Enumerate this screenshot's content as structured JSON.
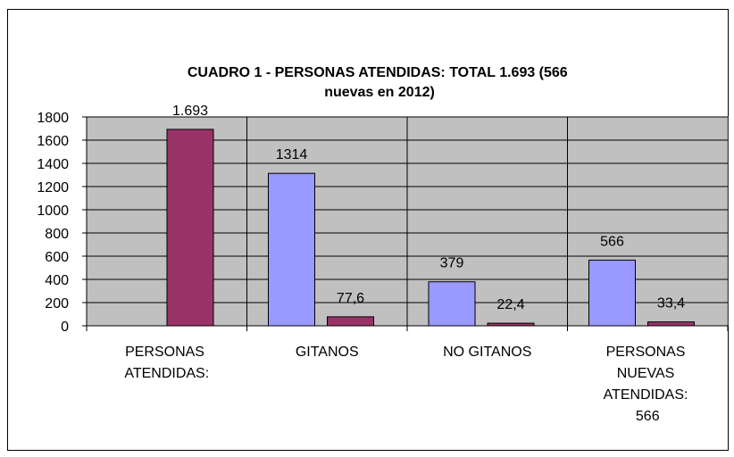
{
  "chart_data": {
    "type": "bar",
    "title": "CUADRO 1 - PERSONAS ATENDIDAS: TOTAL 1.693 (566 nuevas en 2012)",
    "categories": [
      "PERSONAS ATENDIDAS:",
      "GITANOS",
      "NO GITANOS",
      "PERSONAS NUEVAS ATENDIDAS: 566"
    ],
    "series": [
      {
        "color": "#9999ff",
        "values": [
          null,
          1314,
          379,
          566
        ]
      },
      {
        "color": "#993366",
        "values": [
          1693,
          77.6,
          22.4,
          33.4
        ],
        "value_labels": [
          "1.693",
          "77,6",
          "22,4",
          "33,4"
        ]
      }
    ],
    "ylim": [
      0,
      1800
    ],
    "yticks": [
      0,
      200,
      400,
      600,
      800,
      1000,
      1200,
      1400,
      1600,
      1800
    ],
    "grid": true
  }
}
